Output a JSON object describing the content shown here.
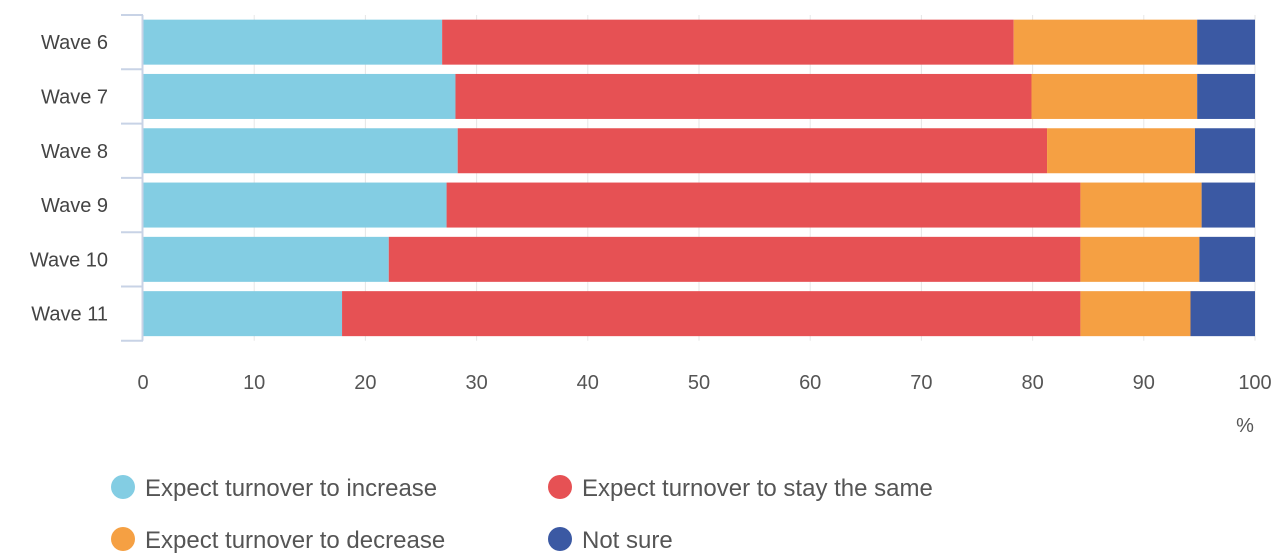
{
  "chart_data": {
    "type": "bar",
    "orientation": "horizontal",
    "stacked": true,
    "categories": [
      "Wave 6",
      "Wave 7",
      "Wave 8",
      "Wave 9",
      "Wave 10",
      "Wave 11"
    ],
    "series": [
      {
        "name": "Expect turnover to increase",
        "color": "#83cde3",
        "values": [
          26.9,
          28.1,
          28.3,
          27.3,
          22.1,
          17.9
        ]
      },
      {
        "name": "Expect turnover to stay the same",
        "color": "#e65154",
        "values": [
          51.4,
          51.8,
          53.0,
          57.0,
          62.2,
          66.4
        ]
      },
      {
        "name": "Expect turnover to decrease",
        "color": "#f5a043",
        "values": [
          16.5,
          14.9,
          13.3,
          10.9,
          10.7,
          9.9
        ]
      },
      {
        "name": "Not sure",
        "color": "#3b59a3",
        "values": [
          5.2,
          5.2,
          5.4,
          4.8,
          5.0,
          5.8
        ]
      }
    ],
    "xlim": [
      0,
      100
    ],
    "xticks": [
      0,
      10,
      20,
      30,
      40,
      50,
      60,
      70,
      80,
      90,
      100
    ],
    "xlabel": "%",
    "grid": true,
    "legend_position": "bottom"
  }
}
